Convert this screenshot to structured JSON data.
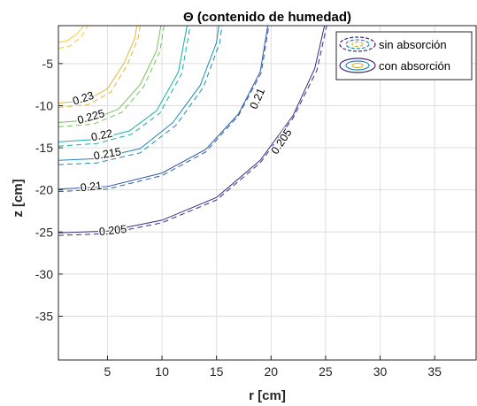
{
  "chart_data": {
    "type": "contour",
    "title": "Θ (contenido de humedad)",
    "xlabel": "r [cm]",
    "ylabel": "z [cm]",
    "xlim": [
      0.5,
      38.8
    ],
    "ylim": [
      -40.2,
      -0.5
    ],
    "x_ticks": [
      "5",
      "10",
      "15",
      "20",
      "25",
      "30",
      "35"
    ],
    "x_tick_values": [
      5,
      10,
      15,
      20,
      25,
      30,
      35
    ],
    "y_ticks": [
      "-5",
      "-10",
      "-15",
      "-20",
      "-25",
      "-30",
      "-35"
    ],
    "y_tick_values": [
      -5,
      -10,
      -15,
      -20,
      -25,
      -30,
      -35
    ],
    "grid": true,
    "legend": {
      "position": "top-right",
      "entries": [
        {
          "label": "sin absorción",
          "style": "dashed"
        },
        {
          "label": "con absorción",
          "style": "solid"
        }
      ]
    },
    "series": [
      {
        "name": "con absorción",
        "style": "solid",
        "levels": [
          {
            "level": 0.205,
            "color": "#3e2a83",
            "points": [
              [
                0.5,
                -25.1
              ],
              [
                5,
                -24.9
              ],
              [
                10,
                -23.6
              ],
              [
                15,
                -20.9
              ],
              [
                19,
                -16.5
              ],
              [
                22,
                -11.2
              ],
              [
                24,
                -5.6
              ],
              [
                24.9,
                -0.5
              ]
            ]
          },
          {
            "level": 0.21,
            "color": "#2f5ba5",
            "points": [
              [
                0.5,
                -19.9
              ],
              [
                5,
                -19.6
              ],
              [
                10,
                -18.0
              ],
              [
                14,
                -15.2
              ],
              [
                17,
                -11.0
              ],
              [
                19,
                -6.0
              ],
              [
                19.7,
                -0.5
              ]
            ]
          },
          {
            "level": 0.215,
            "color": "#1f8ab3",
            "points": [
              [
                0.5,
                -16.5
              ],
              [
                4,
                -16.3
              ],
              [
                8,
                -15.1
              ],
              [
                11,
                -12.0
              ],
              [
                13.5,
                -7.6
              ],
              [
                15,
                -2.5
              ],
              [
                15.2,
                -0.5
              ]
            ]
          },
          {
            "level": 0.22,
            "color": "#18b0a4",
            "points": [
              [
                0.5,
                -14.3
              ],
              [
                4,
                -14.0
              ],
              [
                7,
                -13.0
              ],
              [
                9.5,
                -10.6
              ],
              [
                11.5,
                -6.0
              ],
              [
                12.3,
                -0.5
              ]
            ]
          },
          {
            "level": 0.225,
            "color": "#74c45a",
            "points": [
              [
                0.5,
                -12.0
              ],
              [
                3.5,
                -11.7
              ],
              [
                6,
                -10.4
              ],
              [
                8,
                -7.5
              ],
              [
                9.5,
                -3.5
              ],
              [
                9.9,
                -0.5
              ]
            ]
          },
          {
            "level": 0.23,
            "color": "#dbb937",
            "points": [
              [
                0.5,
                -9.7
              ],
              [
                3,
                -9.4
              ],
              [
                5,
                -8.0
              ],
              [
                6.5,
                -5.0
              ],
              [
                7.5,
                -2.0
              ],
              [
                7.7,
                -0.5
              ]
            ]
          },
          {
            "level": 0.235,
            "color": "#f2cd38",
            "points": [
              [
                0.5,
                -2.5
              ],
              [
                1.3,
                -2.3
              ],
              [
                2.2,
                -1.5
              ],
              [
                2.8,
                -0.5
              ]
            ]
          }
        ]
      },
      {
        "name": "sin absorción",
        "style": "dashed",
        "levels": [
          {
            "level": 0.205,
            "color": "#3e2a83",
            "points": [
              [
                0.5,
                -25.4
              ],
              [
                5,
                -25.2
              ],
              [
                10,
                -23.9
              ],
              [
                15,
                -21.2
              ],
              [
                19,
                -16.8
              ],
              [
                22,
                -11.5
              ],
              [
                24.2,
                -5.8
              ],
              [
                25.1,
                -0.5
              ]
            ]
          },
          {
            "level": 0.21,
            "color": "#2f5ba5",
            "points": [
              [
                0.5,
                -20.2
              ],
              [
                5,
                -19.9
              ],
              [
                10,
                -18.3
              ],
              [
                14,
                -15.5
              ],
              [
                17,
                -11.2
              ],
              [
                19.1,
                -6.1
              ],
              [
                19.8,
                -0.5
              ]
            ]
          },
          {
            "level": 0.215,
            "color": "#1f8ab3",
            "points": [
              [
                0.5,
                -17.0
              ],
              [
                4,
                -16.8
              ],
              [
                8,
                -15.6
              ],
              [
                11.3,
                -12.3
              ],
              [
                13.8,
                -7.8
              ],
              [
                15.3,
                -2.5
              ],
              [
                15.5,
                -0.5
              ]
            ]
          },
          {
            "level": 0.22,
            "color": "#18b0a4",
            "points": [
              [
                0.5,
                -14.8
              ],
              [
                4,
                -14.5
              ],
              [
                7.2,
                -13.4
              ],
              [
                9.8,
                -10.9
              ],
              [
                11.8,
                -6.2
              ],
              [
                12.6,
                -0.5
              ]
            ]
          },
          {
            "level": 0.225,
            "color": "#74c45a",
            "points": [
              [
                0.5,
                -12.5
              ],
              [
                3.7,
                -12.2
              ],
              [
                6.3,
                -10.8
              ],
              [
                8.3,
                -7.8
              ],
              [
                9.8,
                -3.6
              ],
              [
                10.2,
                -0.5
              ]
            ]
          },
          {
            "level": 0.23,
            "color": "#dbb937",
            "points": [
              [
                0.5,
                -10.2
              ],
              [
                3.2,
                -9.9
              ],
              [
                5.3,
                -8.4
              ],
              [
                6.8,
                -5.2
              ],
              [
                7.8,
                -2.0
              ],
              [
                8.0,
                -0.5
              ]
            ]
          },
          {
            "level": 0.235,
            "color": "#f2cd38",
            "points": [
              [
                0.5,
                -3.2
              ],
              [
                1.6,
                -2.9
              ],
              [
                2.6,
                -1.8
              ],
              [
                3.2,
                -0.5
              ]
            ]
          }
        ]
      }
    ],
    "contour_labels": [
      {
        "text": "0.205",
        "x": 5.5,
        "y": -24.9,
        "angle": -6
      },
      {
        "text": "0.205",
        "x": 21.0,
        "y": -14.3,
        "angle": -56
      },
      {
        "text": "0.21",
        "x": 3.5,
        "y": -19.7,
        "angle": -6
      },
      {
        "text": "0.21",
        "x": 18.8,
        "y": -9.2,
        "angle": -66
      },
      {
        "text": "0.215",
        "x": 5.0,
        "y": -15.8,
        "angle": -10
      },
      {
        "text": "0.22",
        "x": 4.5,
        "y": -13.6,
        "angle": -12
      },
      {
        "text": "0.225",
        "x": 3.5,
        "y": -11.4,
        "angle": -16
      },
      {
        "text": "0.23",
        "x": 2.8,
        "y": -9.2,
        "angle": -18
      }
    ]
  }
}
